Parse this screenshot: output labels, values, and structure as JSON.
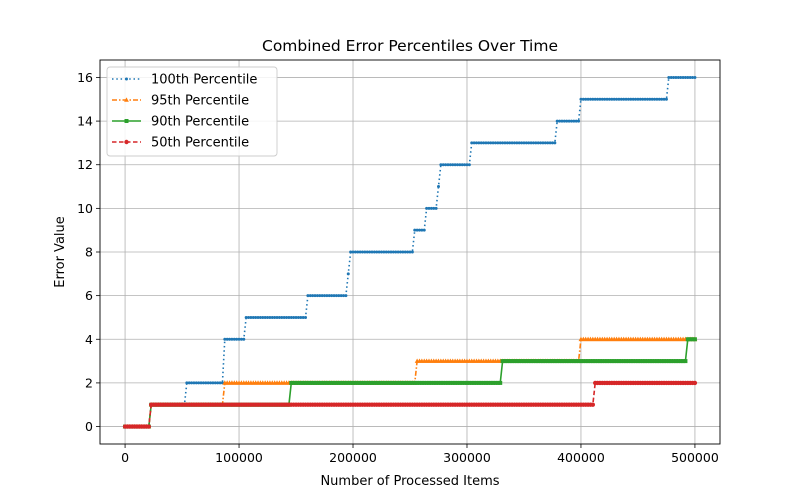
{
  "chart_data": {
    "type": "line",
    "title": "Combined Error Percentiles Over Time",
    "xlabel": "Number of Processed Items",
    "ylabel": "Error Value",
    "xlim": [
      -22000,
      522000
    ],
    "ylim": [
      -0.8,
      16.8
    ],
    "x_ticks": [
      0,
      100000,
      200000,
      300000,
      400000,
      500000
    ],
    "x_tick_labels": [
      "0",
      "100000",
      "200000",
      "300000",
      "400000",
      "500000"
    ],
    "y_ticks": [
      0,
      2,
      4,
      6,
      8,
      10,
      12,
      14,
      16
    ],
    "y_tick_labels": [
      "0",
      "2",
      "4",
      "6",
      "8",
      "10",
      "12",
      "14",
      "16"
    ],
    "grid": true,
    "legend_position": "upper-left",
    "x_range": [
      0,
      500000
    ],
    "series": [
      {
        "name": "100th Percentile",
        "color": "#1f77b4",
        "line_style": "dotted",
        "marker": "point",
        "steps": [
          [
            0,
            0
          ],
          [
            22000,
            1
          ],
          [
            53000,
            2
          ],
          [
            86000,
            4
          ],
          [
            105000,
            5
          ],
          [
            159000,
            6
          ],
          [
            195000,
            7
          ],
          [
            197000,
            8
          ],
          [
            254000,
            9
          ],
          [
            264000,
            10
          ],
          [
            273000,
            11
          ],
          [
            276000,
            12
          ],
          [
            303000,
            13
          ],
          [
            379000,
            14
          ],
          [
            398000,
            15
          ],
          [
            476000,
            16
          ]
        ]
      },
      {
        "name": "95th Percentile",
        "color": "#ff7f0e",
        "line_style": "dashdot",
        "marker": "triangle",
        "steps": [
          [
            0,
            0
          ],
          [
            22000,
            1
          ],
          [
            87000,
            2
          ],
          [
            256000,
            3
          ],
          [
            400000,
            4
          ]
        ]
      },
      {
        "name": "90th Percentile",
        "color": "#2ca02c",
        "line_style": "solid",
        "marker": "square",
        "steps": [
          [
            0,
            0
          ],
          [
            22000,
            1
          ],
          [
            144000,
            2
          ],
          [
            331000,
            3
          ],
          [
            493000,
            4
          ]
        ]
      },
      {
        "name": "50th Percentile",
        "color": "#d62728",
        "line_style": "dashed",
        "marker": "circle",
        "steps": [
          [
            0,
            0
          ],
          [
            22000,
            1
          ],
          [
            412000,
            2
          ]
        ]
      }
    ]
  }
}
